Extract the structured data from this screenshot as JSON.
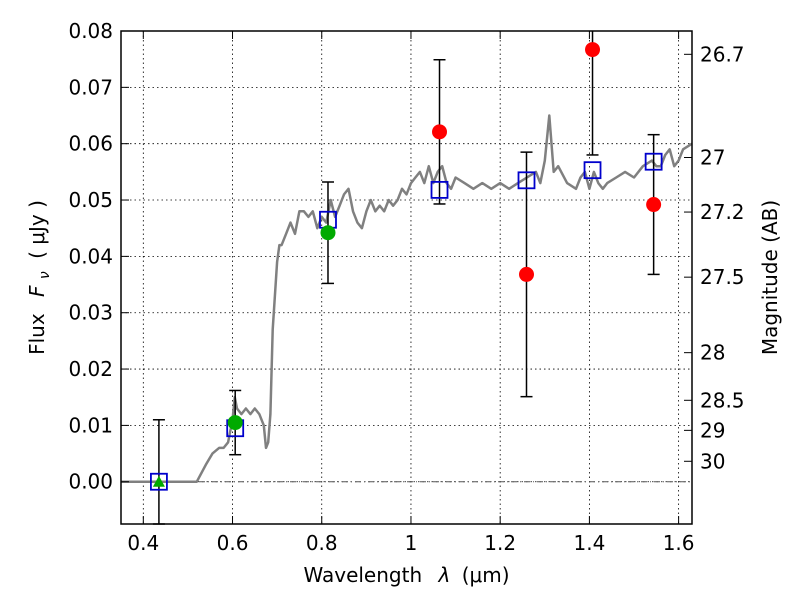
{
  "chart_data": {
    "type": "scatter",
    "xlabel_text": "Wavelength",
    "xlabel_symbol": "λ",
    "xlabel_unit": "(μm)",
    "ylabel_text": "Flux",
    "ylabel_symbol": "F",
    "ylabel_subscript": "ν",
    "ylabel_unit": "( μJy )",
    "y2label": "Magnitude (AB)",
    "xlim": [
      0.35,
      1.63
    ],
    "ylim": [
      -0.0075,
      0.08
    ],
    "grid": true,
    "x_ticks": [
      {
        "value": 0.4,
        "label": "0.4"
      },
      {
        "value": 0.6,
        "label": "0.6"
      },
      {
        "value": 0.8,
        "label": "0.8"
      },
      {
        "value": 1.0,
        "label": "1"
      },
      {
        "value": 1.2,
        "label": "1.2"
      },
      {
        "value": 1.4,
        "label": "1.4"
      },
      {
        "value": 1.6,
        "label": "1.6"
      }
    ],
    "y_ticks": [
      {
        "value": 0.0,
        "label": "0.00"
      },
      {
        "value": 0.01,
        "label": "0.01"
      },
      {
        "value": 0.02,
        "label": "0.02"
      },
      {
        "value": 0.03,
        "label": "0.03"
      },
      {
        "value": 0.04,
        "label": "0.04"
      },
      {
        "value": 0.05,
        "label": "0.05"
      },
      {
        "value": 0.06,
        "label": "0.06"
      },
      {
        "value": 0.07,
        "label": "0.07"
      },
      {
        "value": 0.08,
        "label": "0.08"
      }
    ],
    "y2_ticks": [
      {
        "value": 26.7,
        "label": "26.7"
      },
      {
        "value": 27.0,
        "label": "27"
      },
      {
        "value": 27.2,
        "label": "27.2"
      },
      {
        "value": 27.5,
        "label": "27.5"
      },
      {
        "value": 28.0,
        "label": "28"
      },
      {
        "value": 28.5,
        "label": "28.5"
      },
      {
        "value": 29.0,
        "label": "29"
      },
      {
        "value": 30.0,
        "label": "30"
      }
    ],
    "model_spectrum": {
      "color": "#808080",
      "x": [
        0.35,
        0.52,
        0.54,
        0.555,
        0.57,
        0.58,
        0.59,
        0.6,
        0.605,
        0.61,
        0.62,
        0.63,
        0.64,
        0.65,
        0.66,
        0.67,
        0.675,
        0.68,
        0.685,
        0.69,
        0.7,
        0.705,
        0.71,
        0.72,
        0.73,
        0.74,
        0.75,
        0.76,
        0.77,
        0.78,
        0.79,
        0.8,
        0.81,
        0.82,
        0.83,
        0.84,
        0.85,
        0.86,
        0.87,
        0.88,
        0.89,
        0.9,
        0.91,
        0.92,
        0.93,
        0.94,
        0.95,
        0.96,
        0.97,
        0.98,
        0.99,
        1.0,
        1.01,
        1.02,
        1.03,
        1.04,
        1.05,
        1.06,
        1.07,
        1.08,
        1.09,
        1.1,
        1.12,
        1.14,
        1.16,
        1.18,
        1.2,
        1.22,
        1.24,
        1.26,
        1.28,
        1.29,
        1.3,
        1.31,
        1.32,
        1.33,
        1.35,
        1.37,
        1.38,
        1.39,
        1.4,
        1.41,
        1.42,
        1.43,
        1.44,
        1.46,
        1.48,
        1.5,
        1.52,
        1.54,
        1.55,
        1.56,
        1.57,
        1.58,
        1.59,
        1.6,
        1.61,
        1.63
      ],
      "y": [
        0.0,
        0.0,
        0.003,
        0.005,
        0.006,
        0.006,
        0.007,
        0.011,
        0.015,
        0.013,
        0.012,
        0.013,
        0.012,
        0.013,
        0.012,
        0.01,
        0.006,
        0.007,
        0.012,
        0.027,
        0.039,
        0.042,
        0.042,
        0.044,
        0.046,
        0.044,
        0.048,
        0.048,
        0.047,
        0.048,
        0.045,
        0.047,
        0.046,
        0.05,
        0.047,
        0.049,
        0.051,
        0.052,
        0.048,
        0.046,
        0.045,
        0.048,
        0.05,
        0.048,
        0.049,
        0.048,
        0.05,
        0.049,
        0.05,
        0.052,
        0.051,
        0.053,
        0.054,
        0.055,
        0.053,
        0.056,
        0.053,
        0.055,
        0.056,
        0.053,
        0.052,
        0.054,
        0.053,
        0.052,
        0.053,
        0.052,
        0.053,
        0.052,
        0.053,
        0.054,
        0.055,
        0.053,
        0.057,
        0.065,
        0.055,
        0.056,
        0.053,
        0.052,
        0.054,
        0.055,
        0.052,
        0.055,
        0.053,
        0.052,
        0.053,
        0.054,
        0.055,
        0.054,
        0.056,
        0.057,
        0.056,
        0.056,
        0.058,
        0.059,
        0.056,
        0.057,
        0.059,
        0.06
      ]
    },
    "model_photometry": {
      "marker": "square",
      "color": "#0000cc",
      "points": [
        {
          "x": 0.435,
          "y": 0.0
        },
        {
          "x": 0.606,
          "y": 0.0095
        },
        {
          "x": 0.814,
          "y": 0.0465
        },
        {
          "x": 1.064,
          "y": 0.0518
        },
        {
          "x": 1.259,
          "y": 0.0535
        },
        {
          "x": 1.407,
          "y": 0.0553
        },
        {
          "x": 1.544,
          "y": 0.0568
        }
      ]
    },
    "observed_green": {
      "color": "#00aa00",
      "points": [
        {
          "x": 0.435,
          "y": 0.0,
          "err": 0.011,
          "marker": "triangle"
        },
        {
          "x": 0.606,
          "y": 0.0105,
          "err": 0.0057,
          "marker": "circle"
        },
        {
          "x": 0.814,
          "y": 0.0442,
          "err": 0.009,
          "marker": "circle"
        }
      ]
    },
    "observed_red": {
      "color": "#ff0000",
      "points": [
        {
          "x": 1.064,
          "y": 0.0621,
          "err": 0.0128
        },
        {
          "x": 1.259,
          "y": 0.0368,
          "err": 0.0217
        },
        {
          "x": 1.407,
          "y": 0.0767,
          "err": 0.0187
        },
        {
          "x": 1.544,
          "y": 0.0492,
          "err": 0.0124
        }
      ]
    }
  }
}
